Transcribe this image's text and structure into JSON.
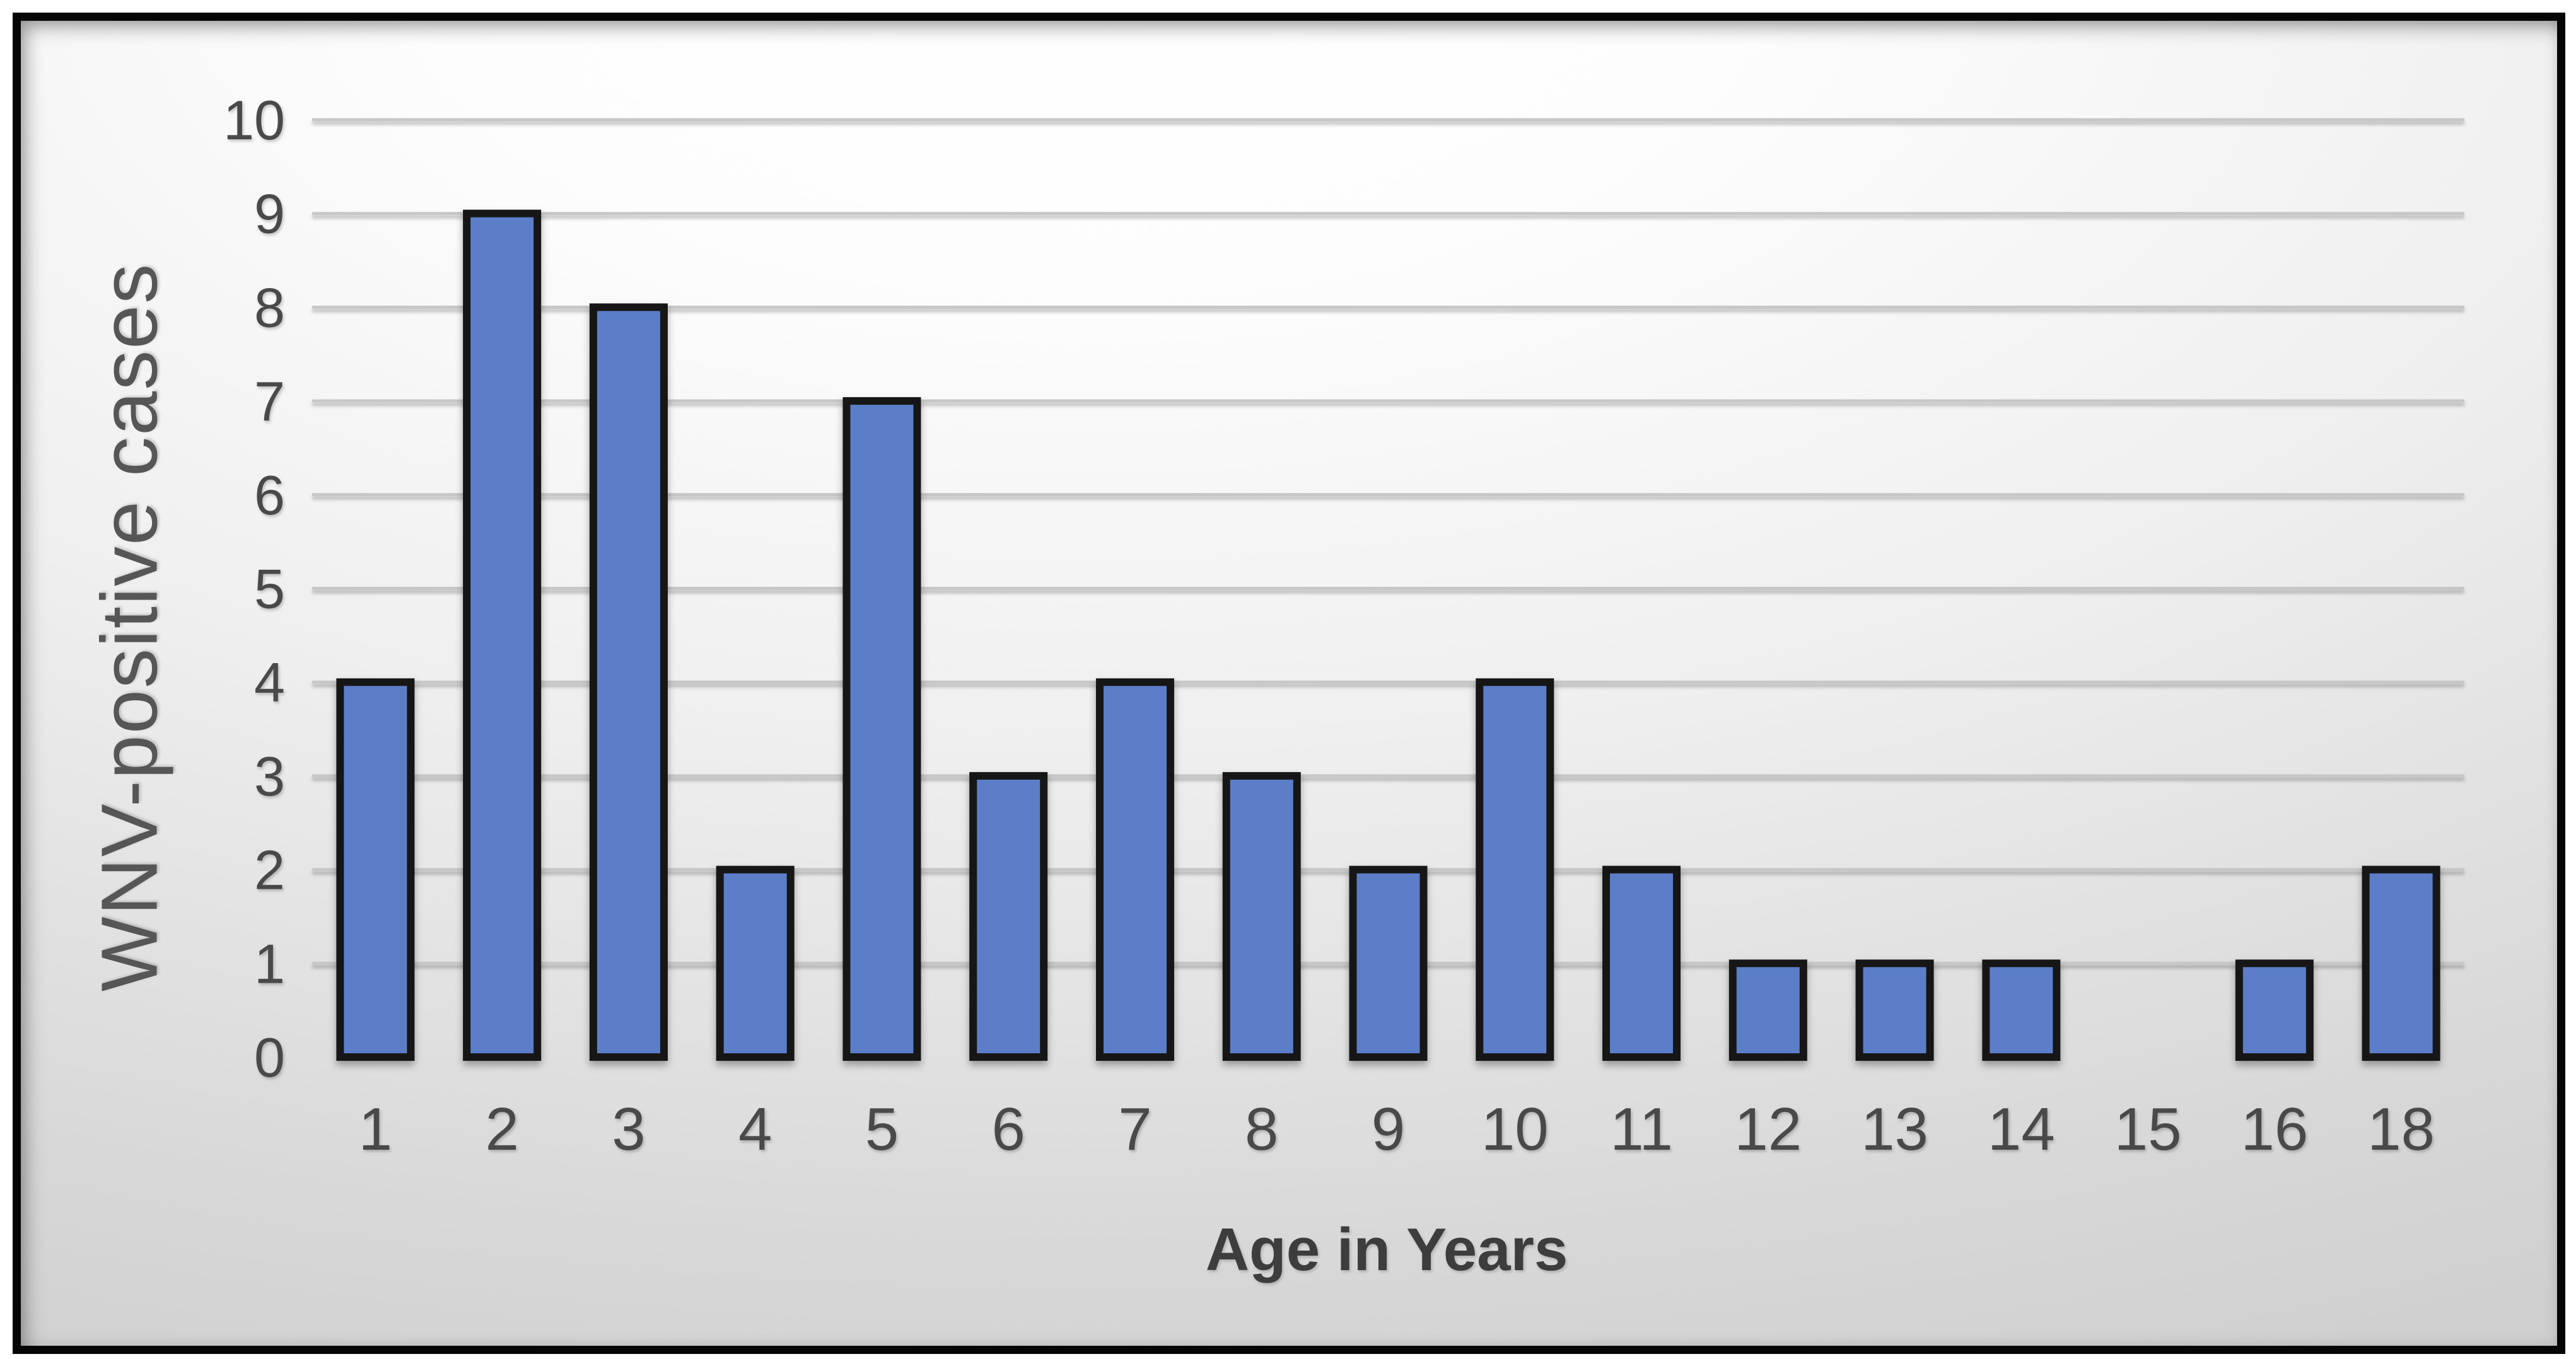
{
  "frame": {
    "outer_background": "#ffffff",
    "border_color": "#050505"
  },
  "slide": {
    "background_top": "#ffffff",
    "background_bottom": "#d0d0d0"
  },
  "chart_data": {
    "type": "bar",
    "title": "",
    "categories": [
      "1",
      "2",
      "3",
      "4",
      "5",
      "6",
      "7",
      "8",
      "9",
      "10",
      "11",
      "12",
      "13",
      "14",
      "15",
      "16",
      "18"
    ],
    "values": [
      4,
      9,
      8,
      2,
      7,
      3,
      4,
      3,
      2,
      4,
      2,
      1,
      1,
      1,
      0,
      1,
      2
    ],
    "xlabel": "Age in Years",
    "ylabel": "WNV-positive cases",
    "ylim": [
      0,
      10
    ],
    "ytick_step": 1,
    "yticks": [
      0,
      1,
      2,
      3,
      4,
      5,
      6,
      7,
      8,
      9,
      10
    ],
    "grid": true,
    "legend": false,
    "colors": {
      "bar_fill": "#5b7ec8",
      "bar_border": "#141414",
      "gridline": "#c7c7c7",
      "axis_line": "#3a3a3a",
      "tick_label": "#4a4a4a",
      "xlabel_color": "#3d3d3d",
      "ylabel_color": "#565656"
    }
  }
}
